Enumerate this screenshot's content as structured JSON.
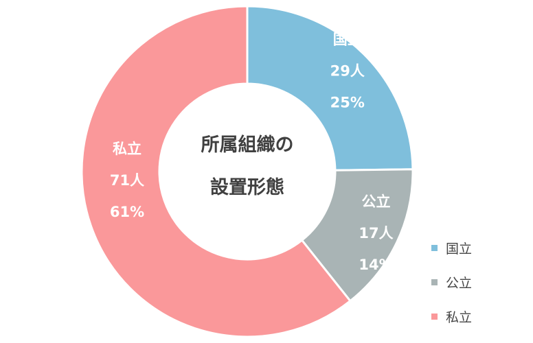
{
  "chart_data": {
    "type": "donut",
    "center_title_lines": [
      "所属組織の",
      "設置形態"
    ],
    "series": [
      {
        "label": "国立",
        "count_label": "29人",
        "percent_label": "25%",
        "value": 29,
        "percent": 25,
        "color": "#7fbfdc"
      },
      {
        "label": "公立",
        "count_label": "17人",
        "percent_label": "14%",
        "value": 17,
        "percent": 14,
        "color": "#a9b4b5"
      },
      {
        "label": "私立",
        "count_label": "71人",
        "percent_label": "61%",
        "value": 71,
        "percent": 61,
        "color": "#fa989a"
      }
    ],
    "legend_position": "bottom-right"
  }
}
